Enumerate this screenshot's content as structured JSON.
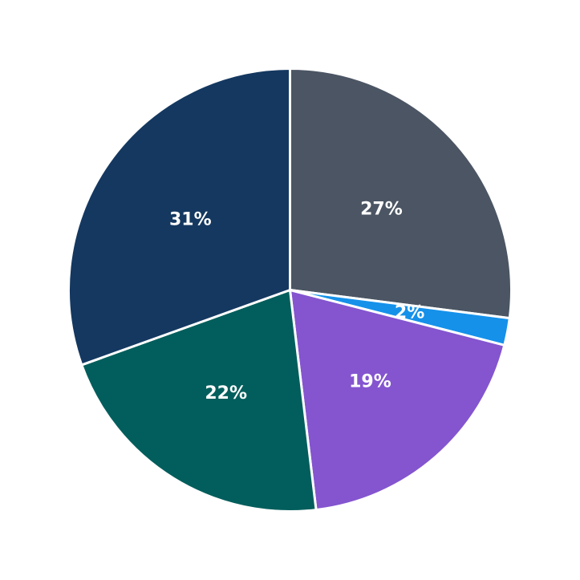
{
  "chart_data": {
    "type": "pie",
    "start_angle_deg": 90,
    "direction": "clockwise",
    "slices": [
      {
        "label": "27%",
        "value": 27.3,
        "color": "#4b5563"
      },
      {
        "label": "2%",
        "value": 2.0,
        "color": "#1591ea"
      },
      {
        "label": "19%",
        "value": 19.3,
        "color": "#8455cf"
      },
      {
        "label": "22%",
        "value": 21.6,
        "color": "#025e5c"
      },
      {
        "label": "31%",
        "value": 30.8,
        "color": "#143860"
      }
    ]
  }
}
